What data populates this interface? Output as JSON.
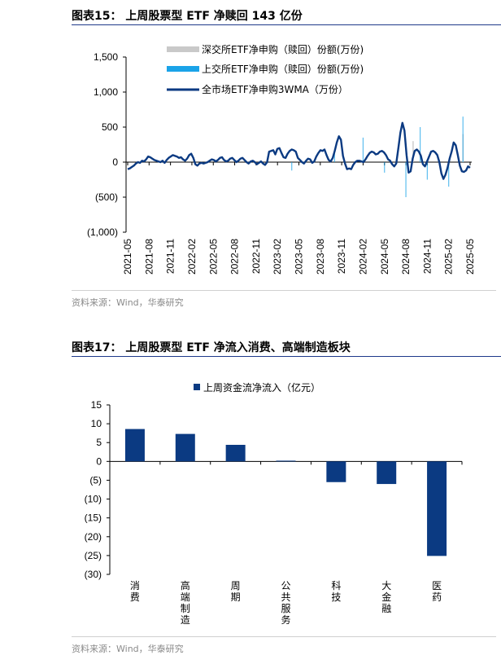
{
  "chart1": {
    "title": "图表15：  上周股票型 ETF 净赎回 143 亿份",
    "source": "资料来源：Wind，华泰研究",
    "chart_data": {
      "type": "line",
      "y_ticks": [
        "1,500",
        "1,000",
        "500",
        "0",
        "(500)",
        "(1,000)"
      ],
      "ylim": [
        -1000,
        1500
      ],
      "x_ticks": [
        "2021-05",
        "2021-08",
        "2021-11",
        "2022-02",
        "2022-05",
        "2022-08",
        "2022-11",
        "2023-02",
        "2023-05",
        "2023-08",
        "2023-11",
        "2024-02",
        "2024-05",
        "2024-08",
        "2024-11",
        "2025-02",
        "2025-05"
      ],
      "legend": [
        "深交所ETF净申购（赎回）份额(万份)",
        "上交所ETF净申购（赎回）份额(万份)",
        "全市场ETF净申购3WMA（万份）"
      ],
      "colors": {
        "shenzhen": "#c9c9c9",
        "shanghai": "#1aa3e8",
        "total": "#0b3a82"
      },
      "series": [
        {
          "name": "全市场ETF净申购3WMA（万份）",
          "values": [
            -100,
            -90,
            -70,
            -50,
            -20,
            0,
            -10,
            20,
            10,
            40,
            80,
            70,
            50,
            30,
            20,
            10,
            0,
            20,
            -10,
            30,
            60,
            80,
            100,
            90,
            80,
            60,
            70,
            40,
            20,
            50,
            100,
            120,
            60,
            -30,
            -50,
            -20,
            -10,
            -20,
            -10,
            0,
            20,
            40,
            30,
            10,
            30,
            60,
            70,
            30,
            10,
            20,
            50,
            60,
            30,
            0,
            20,
            50,
            60,
            30,
            0,
            -20,
            10,
            20,
            0,
            -30,
            -10,
            10,
            -20,
            -40,
            0,
            150,
            160,
            170,
            110,
            190,
            200,
            130,
            70,
            60,
            120,
            160,
            180,
            170,
            150,
            60,
            30,
            0,
            -20,
            20,
            50,
            40,
            -10,
            10,
            80,
            130,
            170,
            160,
            180,
            100,
            30,
            10,
            60,
            160,
            280,
            370,
            320,
            90,
            -20,
            -100,
            -90,
            -100,
            -40,
            0,
            20,
            20,
            10,
            0,
            40,
            90,
            130,
            150,
            140,
            110,
            120,
            150,
            160,
            140,
            100,
            40,
            20,
            -30,
            -60,
            -20,
            200,
            420,
            560,
            450,
            100,
            -150,
            -130,
            50,
            160,
            180,
            150,
            90,
            -30,
            -60,
            10,
            80,
            150,
            160,
            140,
            100,
            0,
            -160,
            -240,
            -180,
            -80,
            50,
            150,
            280,
            240,
            100,
            -50,
            -130,
            -140,
            -120,
            -60,
            -80
          ]
        },
        {
          "name": "上交所ETF净申购（赎回）份额(万份)",
          "values": [
            {
              "x": "2023-04",
              "y": -120
            },
            {
              "x": "2023-10",
              "y": 180
            },
            {
              "x": "2024-02",
              "y": 350
            },
            {
              "x": "2024-05",
              "y": -150
            },
            {
              "x": "2024-08",
              "y": -500
            },
            {
              "x": "2024-10",
              "y": 500
            },
            {
              "x": "2024-11",
              "y": -250
            },
            {
              "x": "2025-02",
              "y": -350
            },
            {
              "x": "2025-04",
              "y": 650
            }
          ]
        },
        {
          "name": "深交所ETF净申购（赎回）份额(万份)",
          "values": [
            {
              "x": "2024-09",
              "y": 300
            },
            {
              "x": "2025-04",
              "y": 400
            }
          ]
        }
      ]
    }
  },
  "chart2": {
    "title": "图表17：  上周股票型 ETF 净流入消费、高端制造板块",
    "source": "资料来源：Wind，华泰研究",
    "chart_data": {
      "type": "bar",
      "categories": [
        "消费",
        "高端制造",
        "周期",
        "公共服务",
        "科技",
        "大金融",
        "医药"
      ],
      "values": [
        8.6,
        7.3,
        4.4,
        0.2,
        -5.5,
        -6.0,
        -25.1
      ],
      "series_name": "上周资金流净流入（亿元）",
      "y_ticks": [
        "15",
        "10",
        "5",
        "0",
        "(5)",
        "(10)",
        "(15)",
        "(20)",
        "(25)",
        "(30)"
      ],
      "ylim": [
        -30,
        15
      ],
      "color": "#0b3a82"
    }
  }
}
